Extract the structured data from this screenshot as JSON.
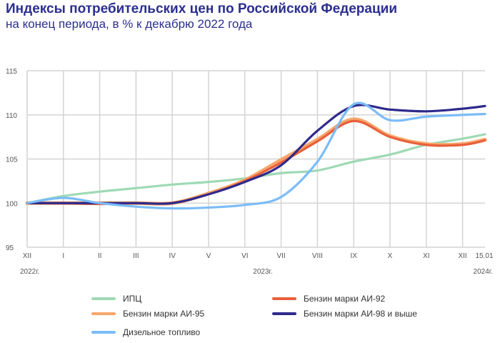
{
  "header": {
    "title": "Индексы потребительских цен по Российской Федерации",
    "subtitle": "на конец периода, в % к декабрю 2022 года"
  },
  "chart_data": {
    "type": "line",
    "title": "Индексы потребительских цен по Российской Федерации",
    "subtitle": "на конец периода, в % к декабрю 2022 года",
    "categories": [
      "XII",
      "I",
      "II",
      "III",
      "IV",
      "V",
      "VI",
      "VII",
      "VIII",
      "IX",
      "X",
      "XI",
      "XII",
      "15.01"
    ],
    "year_labels": [
      "2022г.",
      "2023г.",
      "2024г."
    ],
    "ylim": [
      95,
      115
    ],
    "yticks": [
      95,
      100,
      105,
      110,
      115
    ],
    "grid": true,
    "legend_position": "bottom",
    "series": [
      {
        "name": "ИПЦ",
        "color": "#9ed9b4",
        "values": [
          100,
          100.8,
          101.3,
          101.7,
          102.1,
          102.4,
          102.8,
          103.4,
          103.7,
          104.7,
          105.5,
          106.6,
          107.3,
          107.8
        ]
      },
      {
        "name": "Бензин марки АИ-95",
        "color": "#f7a66b",
        "values": [
          100,
          100,
          100,
          100,
          100,
          101.1,
          102.6,
          104.9,
          107.2,
          109.5,
          107.6,
          106.7,
          106.7,
          107.2
        ]
      },
      {
        "name": "Бензин марки АИ-92",
        "color": "#e8603a",
        "values": [
          100,
          100,
          99.9,
          100,
          100,
          101,
          102.5,
          104.6,
          107,
          109.3,
          107.5,
          106.6,
          106.6,
          107.1
        ]
      },
      {
        "name": "Бензин марки АИ-98 и выше",
        "color": "#2e2a8c",
        "values": [
          100,
          100,
          100,
          100,
          100,
          101,
          102.4,
          104.3,
          108.2,
          111,
          110.6,
          110.4,
          110.7,
          111
        ]
      },
      {
        "name": "Дизельное топливо",
        "color": "#7bbcf7",
        "values": [
          100,
          100.6,
          100,
          99.6,
          99.4,
          99.5,
          99.8,
          100.7,
          104.7,
          111.2,
          109.4,
          109.8,
          110,
          110.1
        ]
      }
    ]
  }
}
